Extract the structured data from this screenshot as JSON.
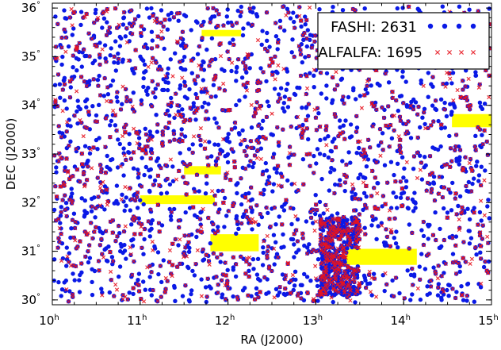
{
  "chart_data": {
    "type": "scatter",
    "xlabel": "RA (J2000)",
    "ylabel": "DEC (J2000)",
    "xlim": [
      10.0,
      15.0
    ],
    "ylim": [
      29.9,
      36.1
    ],
    "x_unit": "h",
    "y_unit": "°",
    "x_ticks": [
      10,
      11,
      12,
      13,
      14,
      15
    ],
    "y_ticks": [
      30,
      31,
      32,
      33,
      34,
      35,
      36
    ],
    "legend_position": "top-right",
    "colors": {
      "fashi": "#0a19e6",
      "alfalfa": "#e6141e",
      "mask": "#ffff00"
    },
    "series": [
      {
        "name": "FASHI",
        "count_label": "2631",
        "marker": "circle"
      },
      {
        "name": "ALFALFA",
        "count_label": "1695",
        "marker": "x"
      }
    ],
    "masked_regions": [
      {
        "ra": [
          11.7,
          12.15
        ],
        "dec": [
          35.42,
          35.55
        ]
      },
      {
        "ra": [
          11.5,
          11.92
        ],
        "dec": [
          32.58,
          32.75
        ]
      },
      {
        "ra": [
          11.0,
          11.85
        ],
        "dec": [
          31.97,
          32.15
        ]
      },
      {
        "ra": [
          11.8,
          12.35
        ],
        "dec": [
          31.0,
          31.35
        ]
      },
      {
        "ra": [
          13.35,
          14.15
        ],
        "dec": [
          30.72,
          31.05
        ]
      },
      {
        "ra": [
          14.55,
          15.0
        ],
        "dec": [
          33.55,
          33.82
        ]
      }
    ]
  }
}
